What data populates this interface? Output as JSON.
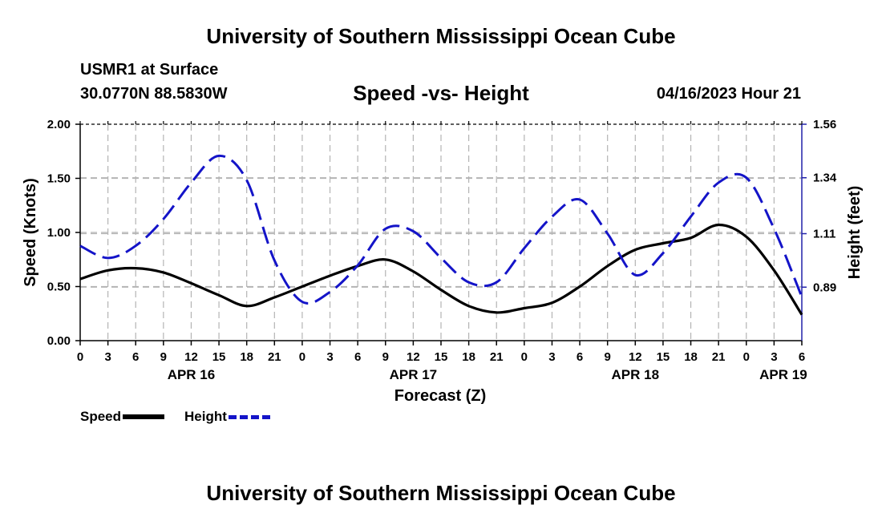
{
  "header": {
    "title": "University of Southern Mississippi Ocean Cube",
    "station_name": "USMR1 at Surface",
    "station_coords": "30.0770N  88.5830W",
    "chart_title": "Speed -vs- Height",
    "datetime": "04/16/2023 Hour 21"
  },
  "footer": {
    "title": "University of Southern Mississippi Ocean Cube"
  },
  "legend": {
    "speed_label": "Speed",
    "height_label": "Height"
  },
  "colors": {
    "speed": "#000000",
    "height": "#1414c8",
    "grid": "#b4b4b4"
  },
  "chart_data": {
    "type": "line",
    "title": "Speed -vs- Height",
    "xlabel": "Forecast (Z)",
    "ylabel": "Speed (Knots)",
    "y2label": "Height (feet)",
    "grid": true,
    "legend_position": "bottom-left",
    "xlim": [
      0,
      78
    ],
    "ylim": [
      0,
      2
    ],
    "y2lim": [
      0.67,
      1.56
    ],
    "yticks": [
      {
        "value": 0,
        "label": "0.00"
      },
      {
        "value": 0.5,
        "label": "0.50"
      },
      {
        "value": 1.0,
        "label": "1.00"
      },
      {
        "value": 1.5,
        "label": "1.50"
      },
      {
        "value": 2.0,
        "label": "2.00"
      }
    ],
    "y2ticks": [
      {
        "value": 0.89,
        "label": "0.89"
      },
      {
        "value": 1.11,
        "label": "1.11"
      },
      {
        "value": 1.34,
        "label": "1.34"
      },
      {
        "value": 1.56,
        "label": "1.56"
      }
    ],
    "xticks": [
      {
        "value": 0,
        "label": "0"
      },
      {
        "value": 3,
        "label": "3"
      },
      {
        "value": 6,
        "label": "6"
      },
      {
        "value": 9,
        "label": "9"
      },
      {
        "value": 12,
        "label": "12"
      },
      {
        "value": 15,
        "label": "15"
      },
      {
        "value": 18,
        "label": "18"
      },
      {
        "value": 21,
        "label": "21"
      },
      {
        "value": 24,
        "label": "0"
      },
      {
        "value": 27,
        "label": "3"
      },
      {
        "value": 30,
        "label": "6"
      },
      {
        "value": 33,
        "label": "9"
      },
      {
        "value": 36,
        "label": "12"
      },
      {
        "value": 39,
        "label": "15"
      },
      {
        "value": 42,
        "label": "18"
      },
      {
        "value": 45,
        "label": "21"
      },
      {
        "value": 48,
        "label": "0"
      },
      {
        "value": 51,
        "label": "3"
      },
      {
        "value": 54,
        "label": "6"
      },
      {
        "value": 57,
        "label": "9"
      },
      {
        "value": 60,
        "label": "12"
      },
      {
        "value": 63,
        "label": "15"
      },
      {
        "value": 66,
        "label": "18"
      },
      {
        "value": 69,
        "label": "21"
      },
      {
        "value": 72,
        "label": "0"
      },
      {
        "value": 75,
        "label": "3"
      },
      {
        "value": 78,
        "label": "6"
      }
    ],
    "day_labels": [
      {
        "value": 12,
        "label": "APR 16"
      },
      {
        "value": 36,
        "label": "APR 17"
      },
      {
        "value": 60,
        "label": "APR 18"
      },
      {
        "value": 76,
        "label": "APR 19"
      }
    ],
    "series": [
      {
        "name": "Speed",
        "axis": "left",
        "x": [
          0,
          3,
          6,
          9,
          12,
          15,
          18,
          21,
          24,
          27,
          30,
          33,
          36,
          39,
          42,
          45,
          48,
          51,
          54,
          57,
          60,
          63,
          66,
          69,
          72,
          75,
          78
        ],
        "values": [
          0.57,
          0.65,
          0.67,
          0.63,
          0.53,
          0.42,
          0.32,
          0.4,
          0.5,
          0.6,
          0.69,
          0.75,
          0.64,
          0.47,
          0.32,
          0.26,
          0.3,
          0.35,
          0.5,
          0.69,
          0.84,
          0.9,
          0.95,
          1.07,
          0.96,
          0.65,
          0.24
        ]
      },
      {
        "name": "Height",
        "axis": "right",
        "x": [
          0,
          3,
          6,
          9,
          12,
          15,
          18,
          21,
          24,
          27,
          30,
          33,
          36,
          39,
          42,
          45,
          48,
          51,
          54,
          57,
          60,
          63,
          66,
          69,
          72,
          75,
          78
        ],
        "values": [
          1.06,
          1.01,
          1.06,
          1.17,
          1.32,
          1.43,
          1.33,
          1.0,
          0.83,
          0.87,
          0.98,
          1.13,
          1.12,
          1.01,
          0.91,
          0.91,
          1.05,
          1.18,
          1.25,
          1.11,
          0.94,
          1.03,
          1.18,
          1.32,
          1.34,
          1.13,
          0.85
        ]
      }
    ]
  }
}
